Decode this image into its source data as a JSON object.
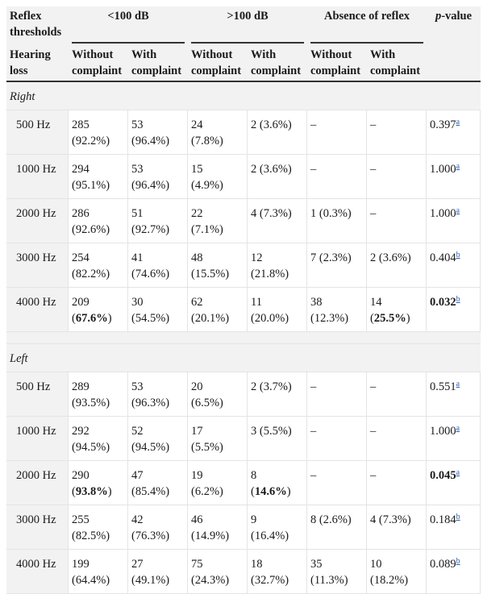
{
  "header": {
    "reflex_thresholds": [
      "Reflex",
      "thresholds"
    ],
    "lt100": "<100 dB",
    "gt100": ">100 dB",
    "absence": "Absence of reflex",
    "pvalue_p": "p",
    "pvalue_rest": "-value",
    "hearing_loss": [
      "Hearing",
      "loss"
    ],
    "without": [
      "Without",
      "complaint"
    ],
    "with": [
      "With",
      "complaint"
    ]
  },
  "sections": [
    {
      "label": "Right",
      "rows": [
        {
          "hz": "500 Hz",
          "c1": [
            "285",
            "(92.2%)"
          ],
          "c2": [
            "53",
            "(96.4%)"
          ],
          "c3": [
            "24",
            "(7.8%)"
          ],
          "c4": [
            "2 (3.6%)",
            ""
          ],
          "c5": [
            "–",
            ""
          ],
          "c6": [
            "–",
            ""
          ],
          "p": "0.397",
          "sup": "a",
          "p_bold": false
        },
        {
          "hz": "1000 Hz",
          "c1": [
            "294",
            "(95.1%)"
          ],
          "c2": [
            "53",
            "(96.4%)"
          ],
          "c3": [
            "15",
            "(4.9%)"
          ],
          "c4": [
            "2 (3.6%)",
            ""
          ],
          "c5": [
            "–",
            ""
          ],
          "c6": [
            "–",
            ""
          ],
          "p": "1.000",
          "sup": "a",
          "p_bold": false
        },
        {
          "hz": "2000 Hz",
          "c1": [
            "286",
            "(92.6%)"
          ],
          "c2": [
            "51",
            "(92.7%)"
          ],
          "c3": [
            "22",
            "(7.1%)"
          ],
          "c4": [
            "4 (7.3%)",
            ""
          ],
          "c5": [
            "1 (0.3%)",
            ""
          ],
          "c6": [
            "–",
            ""
          ],
          "p": "1.000",
          "sup": "a",
          "p_bold": false
        },
        {
          "hz": "3000 Hz",
          "c1": [
            "254",
            "(82.2%)"
          ],
          "c2": [
            "41",
            "(74.6%)"
          ],
          "c3": [
            "48",
            "(15.5%)"
          ],
          "c4": [
            "12",
            "(21.8%)"
          ],
          "c5": [
            "7 (2.3%)",
            ""
          ],
          "c6": [
            "2 (3.6%)",
            ""
          ],
          "p": "0.404",
          "sup": "b",
          "p_bold": false
        },
        {
          "hz": "4000 Hz",
          "c1": [
            "209",
            "67.6%"
          ],
          "c1_bold": true,
          "c2": [
            "30",
            "(54.5%)"
          ],
          "c3": [
            "62",
            "(20.1%)"
          ],
          "c4": [
            "11",
            "(20.0%)"
          ],
          "c5": [
            "38",
            "(12.3%)"
          ],
          "c6": [
            "14",
            "25.5%"
          ],
          "c6_bold": true,
          "p": "0.032",
          "sup": "b",
          "p_bold": true
        }
      ]
    },
    {
      "label": "Left",
      "rows": [
        {
          "hz": "500 Hz",
          "c1": [
            "289",
            "(93.5%)"
          ],
          "c2": [
            "53",
            "(96.3%)"
          ],
          "c3": [
            "20",
            "(6.5%)"
          ],
          "c4": [
            "2 (3.7%)",
            ""
          ],
          "c5": [
            "–",
            ""
          ],
          "c6": [
            "–",
            ""
          ],
          "p": "0.551",
          "sup": "a",
          "p_bold": false
        },
        {
          "hz": "1000 Hz",
          "c1": [
            "292",
            "(94.5%)"
          ],
          "c2": [
            "52",
            "(94.5%)"
          ],
          "c3": [
            "17",
            "(5.5%)"
          ],
          "c4": [
            "3 (5.5%)",
            ""
          ],
          "c5": [
            "–",
            ""
          ],
          "c6": [
            "–",
            ""
          ],
          "p": "1.000",
          "sup": "a",
          "p_bold": false
        },
        {
          "hz": "2000 Hz",
          "c1": [
            "290",
            "93.8%"
          ],
          "c1_bold": true,
          "c2": [
            "47",
            "(85.4%)"
          ],
          "c3": [
            "19",
            "(6.2%)"
          ],
          "c4": [
            "8",
            "14.6%"
          ],
          "c4_bold": true,
          "c5": [
            "–",
            ""
          ],
          "c6": [
            "–",
            ""
          ],
          "p": "0.045",
          "sup": "a",
          "p_bold": true
        },
        {
          "hz": "3000 Hz",
          "c1": [
            "255",
            "(82.5%)"
          ],
          "c2": [
            "42",
            "(76.3%)"
          ],
          "c3": [
            "46",
            "(14.9%)"
          ],
          "c4": [
            "9",
            "(16.4%)"
          ],
          "c5": [
            "8 (2.6%)",
            ""
          ],
          "c6": [
            "4 (7.3%)",
            ""
          ],
          "p": "0.184",
          "sup": "b",
          "p_bold": false
        },
        {
          "hz": "4000 Hz",
          "c1": [
            "199",
            "(64.4%)"
          ],
          "c2": [
            "27",
            "(49.1%)"
          ],
          "c3": [
            "75",
            "(24.3%)"
          ],
          "c4": [
            "18",
            "(32.7%)"
          ],
          "c5": [
            "35",
            "(11.3%)"
          ],
          "c6": [
            "10",
            "(18.2%)"
          ],
          "p": "0.089",
          "sup": "b",
          "p_bold": false
        }
      ]
    }
  ]
}
